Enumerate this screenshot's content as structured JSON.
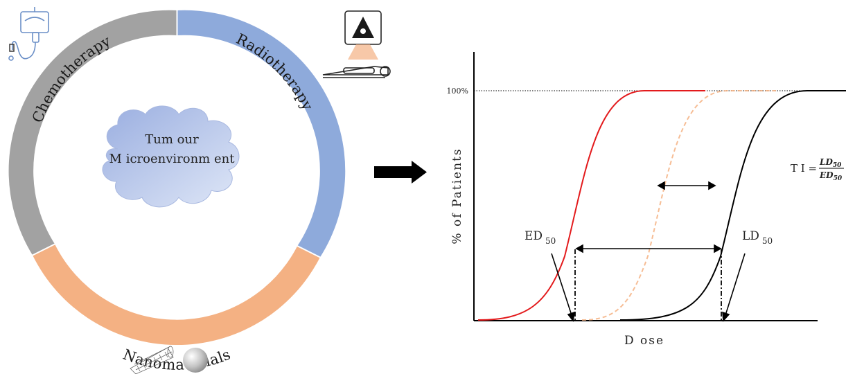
{
  "ring": {
    "segments": {
      "chemotherapy": {
        "label": "Chemotherapy",
        "color": "#a2a2a2"
      },
      "radiotherapy": {
        "label": "Radiotherapy",
        "color": "#8eaadb"
      },
      "nanomaterials": {
        "label": "Nanomaterials",
        "color": "#f4b183"
      }
    },
    "center": {
      "line1": "Tum our",
      "line2": "M icroenvironm ent"
    }
  },
  "icons": [
    "iv-drip-icon",
    "radiation-machine-icon",
    "patient-bed-icon",
    "nanotube-icon",
    "nanosphere-icon",
    "right-arrow-icon"
  ],
  "graph": {
    "xlabel": "D ose",
    "ylabel": "% of Patients",
    "ytick": "100%",
    "ed50": {
      "main": "ED",
      "sub": "50"
    },
    "ld50": {
      "main": "LD",
      "sub": "50"
    },
    "ti": {
      "lhs": "T I =",
      "num": "LD",
      "num_sub": "50",
      "den": "ED",
      "den_sub": "50"
    },
    "colors": {
      "ed_curve": "#e31a1c",
      "mid_curve": "#f4b183",
      "ld_curve": "#000000"
    }
  }
}
